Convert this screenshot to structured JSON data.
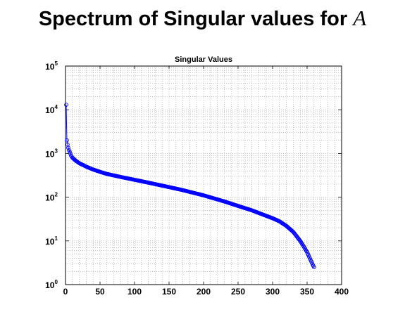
{
  "header": {
    "title_text": "Spectrum of Singular values for",
    "title_var": "A"
  },
  "chart_data": {
    "type": "scatter",
    "title": "Singular Values",
    "xlabel": "",
    "ylabel": "",
    "x_scale": "linear",
    "y_scale": "log",
    "xlim": [
      0,
      400
    ],
    "ylim": [
      1,
      100000
    ],
    "x_ticks": [
      0,
      50,
      100,
      150,
      200,
      250,
      300,
      350,
      400
    ],
    "y_ticks": [
      {
        "base": "10",
        "exp": "0",
        "value": 1
      },
      {
        "base": "10",
        "exp": "1",
        "value": 10
      },
      {
        "base": "10",
        "exp": "2",
        "value": 100
      },
      {
        "base": "10",
        "exp": "3",
        "value": 1000
      },
      {
        "base": "10",
        "exp": "4",
        "value": 10000
      },
      {
        "base": "10",
        "exp": "5",
        "value": 100000
      }
    ],
    "grid": true,
    "grid_style": "dotted",
    "marker": "circle",
    "series": [
      {
        "color": "#0000ff",
        "x": [
          1,
          2,
          3,
          4,
          5,
          6,
          7,
          8,
          10,
          12,
          15,
          20,
          30,
          40,
          50,
          60,
          80,
          100,
          120,
          150,
          170,
          200,
          230,
          250,
          270,
          300,
          310,
          320,
          330,
          340,
          345,
          350,
          352,
          354,
          356,
          358,
          360
        ],
        "y": [
          13000,
          2000,
          1600,
          1350,
          1200,
          1100,
          1000,
          900,
          800,
          750,
          680,
          600,
          500,
          430,
          380,
          340,
          290,
          250,
          215,
          170,
          145,
          110,
          80,
          63,
          50,
          33,
          28,
          22,
          16,
          10,
          7.5,
          5.5,
          4.7,
          4.0,
          3.4,
          2.9,
          2.5
        ]
      }
    ]
  }
}
